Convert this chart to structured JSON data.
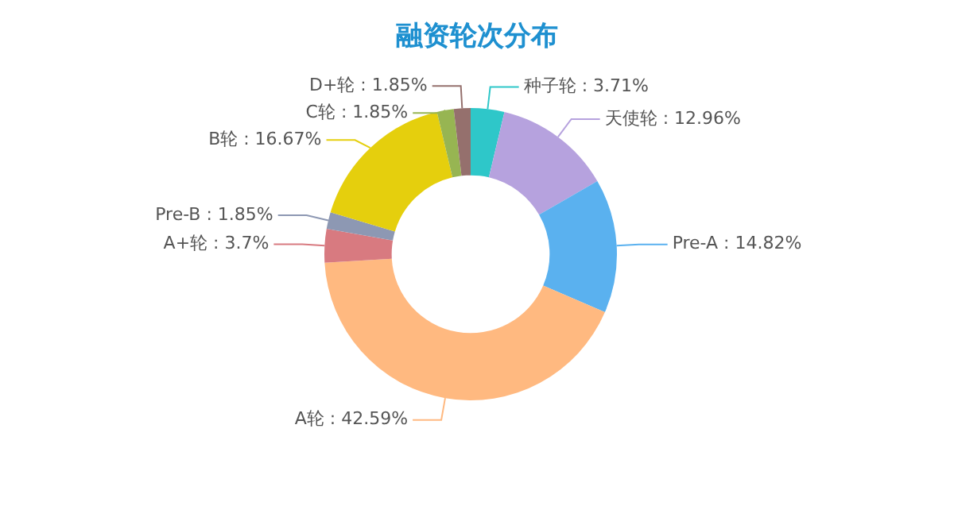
{
  "chart_data": {
    "type": "donut",
    "title": "融资轮次分布",
    "categories": [
      "种子轮",
      "天使轮",
      "Pre-A",
      "A轮",
      "A+轮",
      "Pre-B",
      "B轮",
      "C轮",
      "D+轮"
    ],
    "values": [
      3.71,
      12.96,
      14.82,
      42.59,
      3.7,
      1.85,
      16.67,
      1.85,
      1.85
    ],
    "colors": [
      "#2ec7c9",
      "#b6a2de",
      "#5ab1ef",
      "#ffb980",
      "#d87a80",
      "#8d98b3",
      "#e5cf0d",
      "#97b552",
      "#95706d"
    ],
    "value_labels": [
      ": 3.71%",
      ": 12.96%",
      ": 14.82%",
      ": 42.59%",
      ": 3.7%",
      ": 1.85%",
      ": 16.67%",
      ": 1.85%",
      ": 1.85%"
    ],
    "legend": false
  }
}
